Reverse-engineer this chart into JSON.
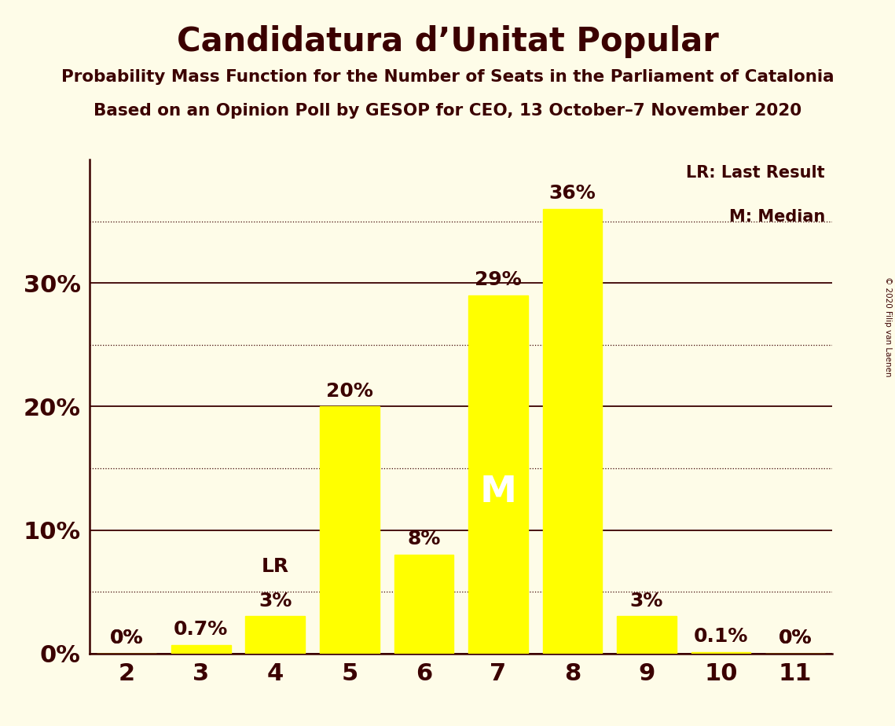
{
  "title": "Candidatura d’Unitat Popular",
  "subtitle1": "Probability Mass Function for the Number of Seats in the Parliament of Catalonia",
  "subtitle2": "Based on an Opinion Poll by GESOP for CEO, 13 October–7 November 2020",
  "copyright": "© 2020 Filip van Laenen",
  "categories": [
    2,
    3,
    4,
    5,
    6,
    7,
    8,
    9,
    10,
    11
  ],
  "values": [
    0.0,
    0.7,
    3.0,
    20.0,
    8.0,
    29.0,
    36.0,
    3.0,
    0.1,
    0.0
  ],
  "labels": [
    "0%",
    "0.7%",
    "3%",
    "20%",
    "8%",
    "29%",
    "36%",
    "3%",
    "0.1%",
    "0%"
  ],
  "bar_color": "#FFFF00",
  "background_color": "#FEFCE8",
  "text_color": "#3B0000",
  "lr_seat": 4,
  "median_seat": 7,
  "ylim": [
    0,
    40
  ],
  "solid_yticks": [
    0,
    10,
    20,
    30
  ],
  "dotted_yticks": [
    5,
    15,
    25,
    35
  ],
  "ylabel_labels": [
    "0%",
    "10%",
    "20%",
    "30%"
  ],
  "bar_width": 0.8
}
